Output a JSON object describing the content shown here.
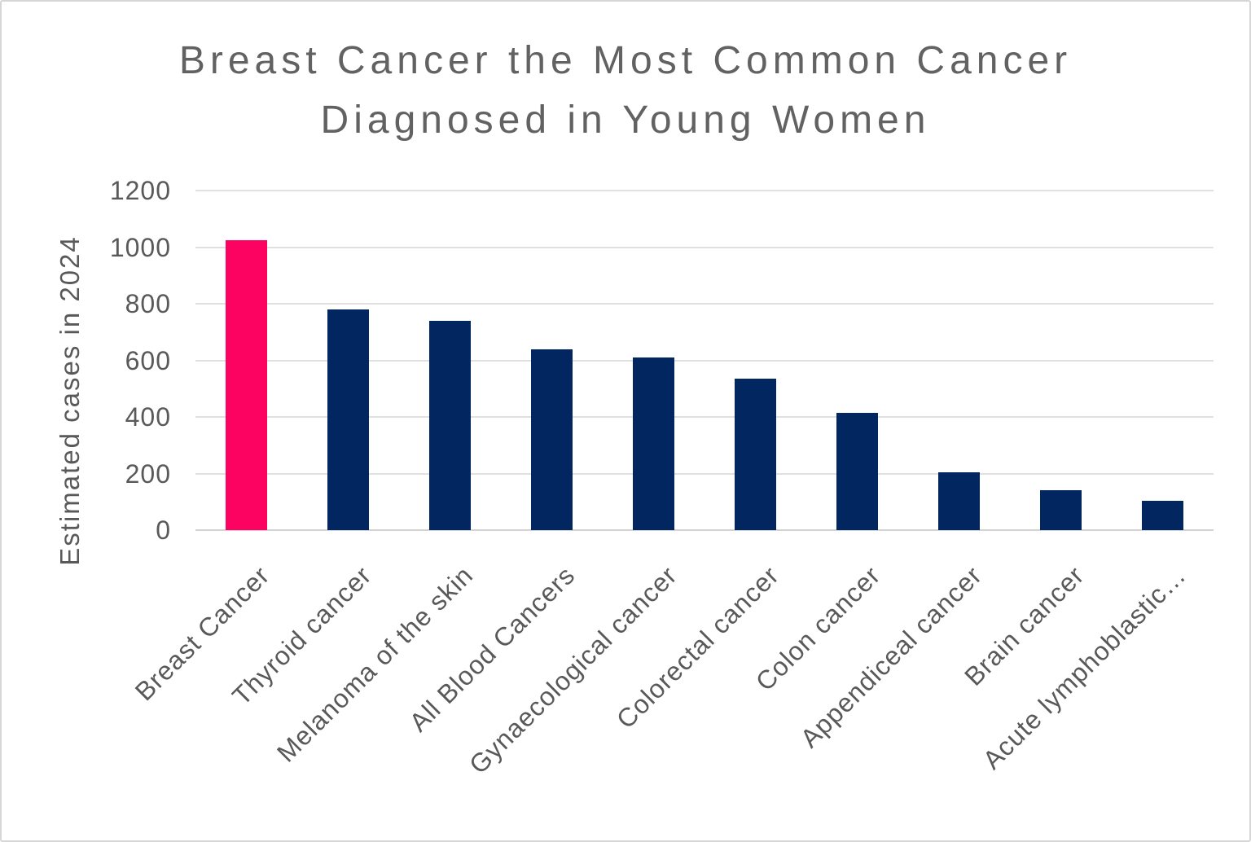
{
  "chart_data": {
    "type": "bar",
    "title": "Breast Cancer the Most Common Cancer Diagnosed in Young Women",
    "title_lines": [
      "Breast Cancer the Most Common Cancer",
      "Diagnosed in Young Women"
    ],
    "ylabel": "Estimated cases in 2024",
    "xlabel": "",
    "categories": [
      "Breast Cancer",
      "Thyroid cancer",
      "Melanoma of the skin",
      "All Blood Cancers",
      "Gynaecological cancer",
      "Colorectal cancer",
      "Colon cancer",
      "Appendiceal cancer",
      "Brain cancer",
      "Acute lymphoblastic…"
    ],
    "values": [
      1025,
      780,
      740,
      640,
      610,
      535,
      415,
      205,
      140,
      105
    ],
    "bar_colors": [
      "#FC0362",
      "#02265F",
      "#02265F",
      "#02265F",
      "#02265F",
      "#02265F",
      "#02265F",
      "#02265F",
      "#02265F",
      "#02265F"
    ],
    "highlight_category": "Breast Cancer",
    "ylim": [
      0,
      1200
    ],
    "yticks": [
      0,
      200,
      400,
      600,
      800,
      1000,
      1200
    ],
    "grid": true,
    "legend_position": "none"
  },
  "colors": {
    "highlight_pink": "#FC0362",
    "bar_navy": "#02265F",
    "gridline": "#e0e0e0",
    "axis_line": "#d2d2d2",
    "axis_text": "#595959",
    "title_text": "#626262",
    "background": "#ffffff",
    "border": "#d6d6d6"
  }
}
